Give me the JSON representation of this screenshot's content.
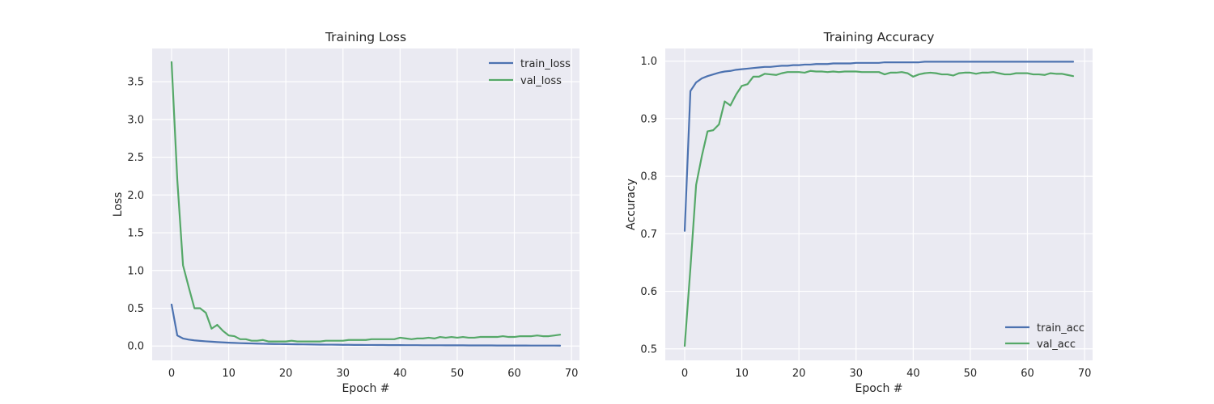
{
  "chart_data": [
    {
      "type": "line",
      "title": "Training Loss",
      "xlabel": "Epoch #",
      "ylabel": "Loss",
      "xlim": [
        -3.4,
        71.4
      ],
      "ylim": [
        -0.19,
        3.94
      ],
      "xticks": [
        0,
        10,
        20,
        30,
        40,
        50,
        60,
        70
      ],
      "yticks": [
        0.0,
        0.5,
        1.0,
        1.5,
        2.0,
        2.5,
        3.0,
        3.5
      ],
      "ytick_labels": [
        "0.0",
        "0.5",
        "1.0",
        "1.5",
        "2.0",
        "2.5",
        "3.0",
        "3.5"
      ],
      "grid": true,
      "legend_position": "top-right",
      "series": [
        {
          "name": "train_loss",
          "color": "#4c72b0",
          "x": [
            0,
            1,
            2,
            3,
            4,
            5,
            6,
            7,
            8,
            9,
            10,
            11,
            12,
            13,
            14,
            15,
            16,
            17,
            18,
            19,
            20,
            21,
            22,
            23,
            24,
            25,
            26,
            27,
            28,
            29,
            30,
            31,
            32,
            33,
            34,
            35,
            36,
            37,
            38,
            39,
            40,
            41,
            42,
            43,
            44,
            45,
            46,
            47,
            48,
            49,
            50,
            51,
            52,
            53,
            54,
            55,
            56,
            57,
            58,
            59,
            60,
            61,
            62,
            63,
            64,
            65,
            66,
            67,
            68
          ],
          "values": [
            0.55,
            0.14,
            0.1,
            0.085,
            0.075,
            0.068,
            0.062,
            0.057,
            0.052,
            0.048,
            0.044,
            0.041,
            0.038,
            0.036,
            0.034,
            0.032,
            0.03,
            0.028,
            0.027,
            0.026,
            0.025,
            0.024,
            0.023,
            0.022,
            0.021,
            0.02,
            0.019,
            0.018,
            0.018,
            0.017,
            0.016,
            0.016,
            0.015,
            0.015,
            0.014,
            0.014,
            0.013,
            0.013,
            0.012,
            0.012,
            0.012,
            0.011,
            0.011,
            0.011,
            0.01,
            0.01,
            0.01,
            0.01,
            0.009,
            0.009,
            0.009,
            0.009,
            0.008,
            0.008,
            0.008,
            0.008,
            0.008,
            0.007,
            0.007,
            0.007,
            0.007,
            0.007,
            0.007,
            0.006,
            0.006,
            0.006,
            0.006,
            0.006,
            0.005
          ]
        },
        {
          "name": "val_loss",
          "color": "#55a868",
          "x": [
            0,
            1,
            2,
            3,
            4,
            5,
            6,
            7,
            8,
            9,
            10,
            11,
            12,
            13,
            14,
            15,
            16,
            17,
            18,
            19,
            20,
            21,
            22,
            23,
            24,
            25,
            26,
            27,
            28,
            29,
            30,
            31,
            32,
            33,
            34,
            35,
            36,
            37,
            38,
            39,
            40,
            41,
            42,
            43,
            44,
            45,
            46,
            47,
            48,
            49,
            50,
            51,
            52,
            53,
            54,
            55,
            56,
            57,
            58,
            59,
            60,
            61,
            62,
            63,
            64,
            65,
            66,
            67,
            68
          ],
          "values": [
            3.76,
            2.2,
            1.07,
            0.78,
            0.5,
            0.5,
            0.44,
            0.23,
            0.28,
            0.2,
            0.14,
            0.13,
            0.09,
            0.09,
            0.07,
            0.07,
            0.08,
            0.06,
            0.06,
            0.06,
            0.06,
            0.07,
            0.06,
            0.06,
            0.06,
            0.06,
            0.06,
            0.07,
            0.07,
            0.07,
            0.07,
            0.08,
            0.08,
            0.08,
            0.08,
            0.09,
            0.09,
            0.09,
            0.09,
            0.09,
            0.11,
            0.1,
            0.09,
            0.1,
            0.1,
            0.11,
            0.1,
            0.12,
            0.11,
            0.12,
            0.11,
            0.12,
            0.11,
            0.11,
            0.12,
            0.12,
            0.12,
            0.12,
            0.13,
            0.12,
            0.12,
            0.13,
            0.13,
            0.13,
            0.14,
            0.13,
            0.13,
            0.14,
            0.15
          ]
        }
      ]
    },
    {
      "type": "line",
      "title": "Training Accuracy",
      "xlabel": "Epoch #",
      "ylabel": "Accuracy",
      "xlim": [
        -3.4,
        71.4
      ],
      "ylim": [
        0.48,
        1.022
      ],
      "xticks": [
        0,
        10,
        20,
        30,
        40,
        50,
        60,
        70
      ],
      "yticks": [
        0.5,
        0.6,
        0.7,
        0.8,
        0.9,
        1.0
      ],
      "ytick_labels": [
        "0.5",
        "0.6",
        "0.7",
        "0.8",
        "0.9",
        "1.0"
      ],
      "grid": true,
      "legend_position": "bottom-right",
      "series": [
        {
          "name": "train_acc",
          "color": "#4c72b0",
          "x": [
            0,
            1,
            2,
            3,
            4,
            5,
            6,
            7,
            8,
            9,
            10,
            11,
            12,
            13,
            14,
            15,
            16,
            17,
            18,
            19,
            20,
            21,
            22,
            23,
            24,
            25,
            26,
            27,
            28,
            29,
            30,
            31,
            32,
            33,
            34,
            35,
            36,
            37,
            38,
            39,
            40,
            41,
            42,
            43,
            44,
            45,
            46,
            47,
            48,
            49,
            50,
            51,
            52,
            53,
            54,
            55,
            56,
            57,
            58,
            59,
            60,
            61,
            62,
            63,
            64,
            65,
            66,
            67,
            68
          ],
          "values": [
            0.705,
            0.948,
            0.963,
            0.97,
            0.974,
            0.977,
            0.98,
            0.982,
            0.983,
            0.985,
            0.986,
            0.987,
            0.988,
            0.989,
            0.99,
            0.99,
            0.991,
            0.992,
            0.992,
            0.993,
            0.993,
            0.994,
            0.994,
            0.995,
            0.995,
            0.995,
            0.996,
            0.996,
            0.996,
            0.996,
            0.997,
            0.997,
            0.997,
            0.997,
            0.997,
            0.998,
            0.998,
            0.998,
            0.998,
            0.998,
            0.998,
            0.998,
            0.999,
            0.999,
            0.999,
            0.999,
            0.999,
            0.999,
            0.999,
            0.999,
            0.999,
            0.999,
            0.999,
            0.999,
            0.999,
            0.999,
            0.999,
            0.999,
            0.999,
            0.999,
            0.999,
            0.999,
            0.999,
            0.999,
            0.999,
            0.999,
            0.999,
            0.999,
            0.999
          ]
        },
        {
          "name": "val_acc",
          "color": "#55a868",
          "x": [
            0,
            1,
            2,
            3,
            4,
            5,
            6,
            7,
            8,
            9,
            10,
            11,
            12,
            13,
            14,
            15,
            16,
            17,
            18,
            19,
            20,
            21,
            22,
            23,
            24,
            25,
            26,
            27,
            28,
            29,
            30,
            31,
            32,
            33,
            34,
            35,
            36,
            37,
            38,
            39,
            40,
            41,
            42,
            43,
            44,
            45,
            46,
            47,
            48,
            49,
            50,
            51,
            52,
            53,
            54,
            55,
            56,
            57,
            58,
            59,
            60,
            61,
            62,
            63,
            64,
            65,
            66,
            67,
            68
          ],
          "values": [
            0.505,
            0.64,
            0.785,
            0.835,
            0.878,
            0.88,
            0.89,
            0.93,
            0.923,
            0.942,
            0.957,
            0.96,
            0.973,
            0.973,
            0.978,
            0.977,
            0.976,
            0.979,
            0.981,
            0.981,
            0.981,
            0.98,
            0.983,
            0.982,
            0.982,
            0.981,
            0.982,
            0.981,
            0.982,
            0.982,
            0.982,
            0.981,
            0.981,
            0.981,
            0.981,
            0.977,
            0.98,
            0.98,
            0.981,
            0.979,
            0.973,
            0.977,
            0.979,
            0.98,
            0.979,
            0.977,
            0.977,
            0.975,
            0.979,
            0.98,
            0.98,
            0.978,
            0.98,
            0.98,
            0.981,
            0.979,
            0.977,
            0.977,
            0.979,
            0.979,
            0.979,
            0.977,
            0.977,
            0.976,
            0.979,
            0.978,
            0.978,
            0.976,
            0.974
          ]
        }
      ]
    }
  ]
}
